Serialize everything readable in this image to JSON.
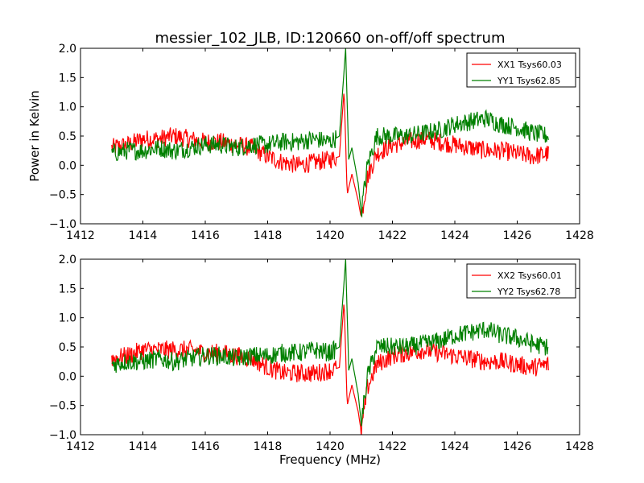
{
  "chart_data": {
    "type": "line",
    "title": "messier_102_JLB, ID:120660 on-off/off spectrum",
    "xlabel": "Frequency (MHz)",
    "ylabel": "Power in Kelvin",
    "xlim": [
      1412,
      1428
    ],
    "ylim": [
      -1.0,
      2.0
    ],
    "xticks": [
      "1412",
      "1414",
      "1416",
      "1418",
      "1420",
      "1422",
      "1424",
      "1426",
      "1428"
    ],
    "yticks": [
      "−1.0",
      "−0.5",
      "0.0",
      "0.5",
      "1.0",
      "1.5",
      "2.0"
    ],
    "grid": false,
    "panels": [
      {
        "ylabel": "Power in Kelvin",
        "xlabel": "",
        "legend_position": "top-right",
        "series": [
          {
            "name": "XX1 Tsys60.03",
            "color": "#ff0000",
            "x": [
              1413.0,
              1413.5,
              1414.0,
              1414.5,
              1415.0,
              1415.5,
              1416.0,
              1416.5,
              1417.0,
              1417.5,
              1418.0,
              1418.5,
              1419.0,
              1419.5,
              1420.0,
              1420.3,
              1420.45,
              1420.55,
              1420.7,
              1420.9,
              1421.0,
              1421.2,
              1421.5,
              1422.0,
              1422.5,
              1423.0,
              1423.5,
              1424.0,
              1424.5,
              1425.0,
              1425.5,
              1426.0,
              1426.5,
              1427.0
            ],
            "y": [
              0.3,
              0.35,
              0.45,
              0.45,
              0.5,
              0.45,
              0.4,
              0.4,
              0.35,
              0.3,
              0.15,
              0.05,
              0.0,
              0.05,
              0.1,
              0.15,
              1.3,
              -0.5,
              -0.15,
              -0.6,
              -0.9,
              -0.2,
              0.2,
              0.35,
              0.4,
              0.45,
              0.4,
              0.35,
              0.3,
              0.25,
              0.25,
              0.2,
              0.15,
              0.2
            ]
          },
          {
            "name": "YY1 Tsys62.85",
            "color": "#008000",
            "x": [
              1413.0,
              1413.5,
              1414.0,
              1414.5,
              1415.0,
              1415.5,
              1416.0,
              1416.5,
              1417.0,
              1417.5,
              1418.0,
              1418.5,
              1419.0,
              1419.5,
              1420.0,
              1420.3,
              1420.5,
              1420.6,
              1420.7,
              1420.9,
              1421.0,
              1421.2,
              1421.5,
              1422.0,
              1422.5,
              1423.0,
              1423.5,
              1424.0,
              1424.5,
              1425.0,
              1425.5,
              1426.0,
              1426.5,
              1427.0
            ],
            "y": [
              0.2,
              0.25,
              0.25,
              0.3,
              0.25,
              0.3,
              0.35,
              0.35,
              0.3,
              0.35,
              0.35,
              0.4,
              0.4,
              0.45,
              0.4,
              0.5,
              2.0,
              0.1,
              0.3,
              -0.3,
              -0.8,
              0.0,
              0.5,
              0.5,
              0.5,
              0.55,
              0.6,
              0.7,
              0.75,
              0.8,
              0.7,
              0.65,
              0.55,
              0.5
            ]
          }
        ]
      },
      {
        "ylabel": "",
        "xlabel": "Frequency (MHz)",
        "legend_position": "top-right",
        "series": [
          {
            "name": "XX2 Tsys60.01",
            "color": "#ff0000",
            "x": [
              1413.0,
              1413.5,
              1414.0,
              1414.5,
              1415.0,
              1415.5,
              1416.0,
              1416.5,
              1417.0,
              1417.5,
              1418.0,
              1418.5,
              1419.0,
              1419.5,
              1420.0,
              1420.3,
              1420.45,
              1420.55,
              1420.7,
              1420.9,
              1421.0,
              1421.2,
              1421.5,
              1422.0,
              1422.5,
              1423.0,
              1423.5,
              1424.0,
              1424.5,
              1425.0,
              1425.5,
              1426.0,
              1426.5,
              1427.0
            ],
            "y": [
              0.3,
              0.35,
              0.45,
              0.45,
              0.45,
              0.45,
              0.4,
              0.4,
              0.35,
              0.3,
              0.15,
              0.05,
              0.05,
              0.05,
              0.1,
              0.15,
              1.3,
              -0.5,
              -0.15,
              -0.6,
              -0.95,
              -0.2,
              0.2,
              0.35,
              0.4,
              0.45,
              0.4,
              0.35,
              0.3,
              0.25,
              0.25,
              0.2,
              0.15,
              0.2
            ]
          },
          {
            "name": "YY2 Tsys62.78",
            "color": "#008000",
            "x": [
              1413.0,
              1413.5,
              1414.0,
              1414.5,
              1415.0,
              1415.5,
              1416.0,
              1416.5,
              1417.0,
              1417.5,
              1418.0,
              1418.5,
              1419.0,
              1419.5,
              1420.0,
              1420.3,
              1420.5,
              1420.6,
              1420.7,
              1420.9,
              1421.0,
              1421.2,
              1421.5,
              1422.0,
              1422.5,
              1423.0,
              1423.5,
              1424.0,
              1424.5,
              1425.0,
              1425.5,
              1426.0,
              1426.5,
              1427.0
            ],
            "y": [
              0.2,
              0.25,
              0.25,
              0.3,
              0.25,
              0.3,
              0.35,
              0.35,
              0.3,
              0.35,
              0.35,
              0.4,
              0.4,
              0.45,
              0.4,
              0.5,
              2.0,
              0.1,
              0.3,
              -0.3,
              -0.8,
              0.0,
              0.5,
              0.5,
              0.5,
              0.55,
              0.6,
              0.7,
              0.75,
              0.8,
              0.7,
              0.65,
              0.55,
              0.5
            ]
          }
        ]
      }
    ]
  }
}
